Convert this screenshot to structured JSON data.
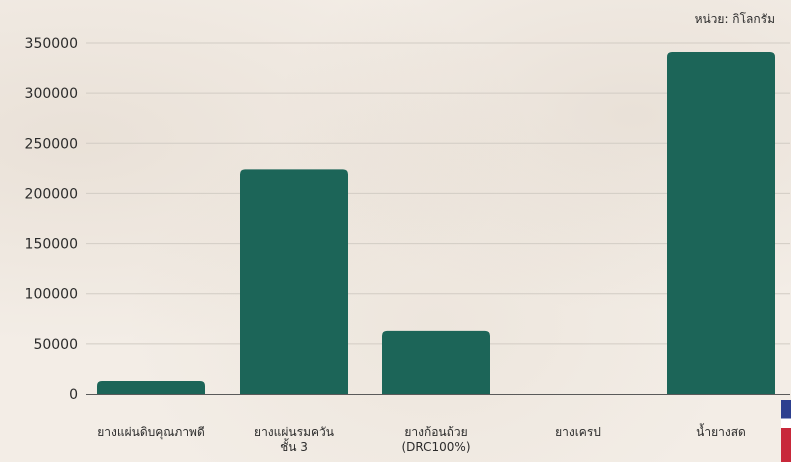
{
  "unit_label": "หน่วย: กิโลกรัม",
  "colors": {
    "bar": "#1c6558",
    "grid": "#d2ccc4",
    "axis": "#5a5a5a",
    "text": "#2b2b2b"
  },
  "chart_data": {
    "type": "bar",
    "categories": [
      [
        "ยางแผ่นดิบคุณภาพดี"
      ],
      [
        "ยางแผ่นรมควัน",
        "ชั้น 3"
      ],
      [
        "ยางก้อนถ้วย",
        "(DRC100%)"
      ],
      [
        "ยางเครป"
      ],
      [
        "น้ำยางสด"
      ]
    ],
    "values": [
      13000,
      224000,
      63000,
      0,
      341000
    ],
    "yticks": [
      "0",
      "50000",
      "100000",
      "150000",
      "200000",
      "250000",
      "300000",
      "350000"
    ],
    "ylim": [
      0,
      350000
    ],
    "grid": true,
    "title": "",
    "xlabel": "",
    "ylabel": ""
  }
}
